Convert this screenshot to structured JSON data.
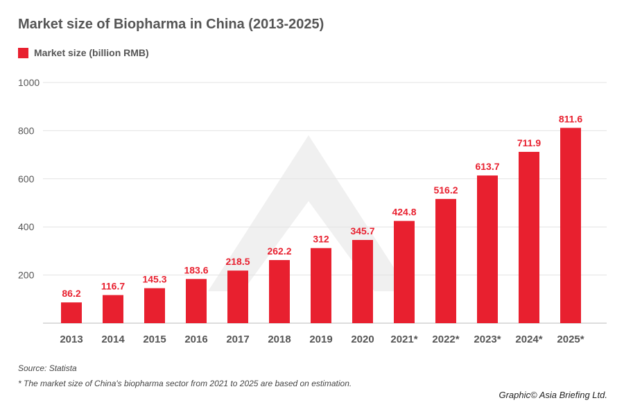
{
  "chart_data": {
    "type": "bar",
    "title": "Market size of Biopharma in China (2013-2025)",
    "categories": [
      "2013",
      "2014",
      "2015",
      "2016",
      "2017",
      "2018",
      "2019",
      "2020",
      "2021*",
      "2022*",
      "2023*",
      "2024*",
      "2025*"
    ],
    "series": [
      {
        "name": "Market size (billion RMB)",
        "values": [
          86.2,
          116.7,
          145.3,
          183.6,
          218.5,
          262.2,
          312,
          345.7,
          424.8,
          516.2,
          613.7,
          711.9,
          811.6
        ],
        "color": "#e8202f"
      }
    ],
    "value_labels": [
      "86.2",
      "116.7",
      "145.3",
      "183.6",
      "218.5",
      "262.2",
      "312",
      "345.7",
      "424.8",
      "516.2",
      "613.7",
      "711.9",
      "811.6"
    ],
    "ylim": [
      0,
      1000
    ],
    "yticks": [
      200,
      400,
      600,
      800,
      1000
    ],
    "grid": true,
    "legend": "top-left",
    "xlabel": "",
    "ylabel": ""
  },
  "footer": {
    "source": "Source: Statista",
    "note": "* The market size of China's biopharma sector from 2021 to 2025 are based on estimation.",
    "credit": "Graphic© Asia Briefing Ltd."
  }
}
